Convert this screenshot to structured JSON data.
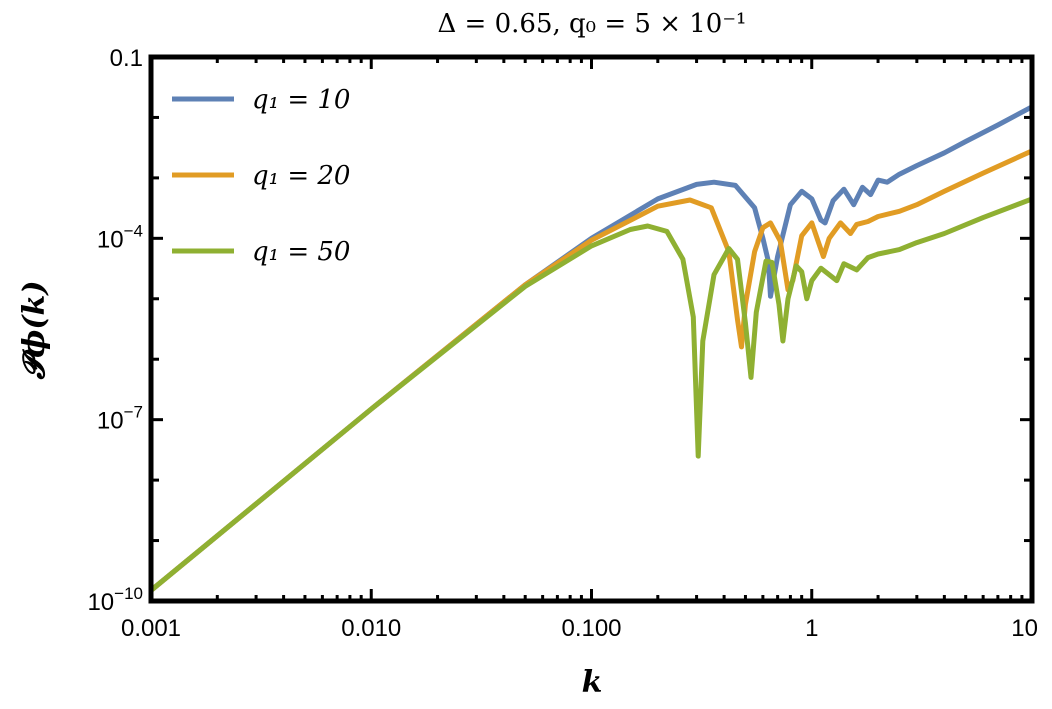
{
  "chart_data": {
    "type": "line",
    "title": "Δ = 0.65,  q₀ = 5 × 10⁻¹",
    "xlabel": "k",
    "ylabel": "𝓟ϕ(k)",
    "x_scale": "log",
    "y_scale": "log",
    "xlim": [
      0.001,
      10
    ],
    "ylim": [
      1e-10,
      0.1
    ],
    "x_ticks": [
      {
        "value": 0.001,
        "label": "0.001"
      },
      {
        "value": 0.01,
        "label": "0.010"
      },
      {
        "value": 0.1,
        "label": "0.100"
      },
      {
        "value": 1,
        "label": "1"
      },
      {
        "value": 10,
        "label": "10"
      }
    ],
    "y_ticks": [
      {
        "value": 1e-10,
        "label": "10",
        "exp": "−10"
      },
      {
        "value": 1e-07,
        "label": "10",
        "exp": "−7"
      },
      {
        "value": 0.0001,
        "label": "10",
        "exp": "−4"
      },
      {
        "value": 0.1,
        "label": "0.1",
        "exp": ""
      }
    ],
    "legend_position": "top-left",
    "series": [
      {
        "name": "q₁ = 10",
        "color": "#5e81b5",
        "points": [
          [
            0.001,
            1.5e-10
          ],
          [
            0.01,
            1.5e-07
          ],
          [
            0.05,
            1.7e-05
          ],
          [
            0.1,
            0.0001
          ],
          [
            0.2,
            0.00045
          ],
          [
            0.3,
            0.00078
          ],
          [
            0.36,
            0.00085
          ],
          [
            0.45,
            0.00075
          ],
          [
            0.55,
            0.00032
          ],
          [
            0.6,
            0.0001
          ],
          [
            0.635,
            4.2e-05
          ],
          [
            0.65,
            1.1e-05
          ],
          [
            0.7,
            5e-05
          ],
          [
            0.8,
            0.00036
          ],
          [
            0.9,
            0.0006
          ],
          [
            1.0,
            0.00045
          ],
          [
            1.1,
            0.0002
          ],
          [
            1.15,
            0.00018
          ],
          [
            1.25,
            0.00042
          ],
          [
            1.4,
            0.00065
          ],
          [
            1.55,
            0.00036
          ],
          [
            1.7,
            0.0007
          ],
          [
            1.85,
            0.00053
          ],
          [
            2.0,
            0.00092
          ],
          [
            2.2,
            0.00085
          ],
          [
            2.5,
            0.00115
          ],
          [
            3.0,
            0.0016
          ],
          [
            4.0,
            0.0026
          ],
          [
            5.0,
            0.004
          ],
          [
            7.0,
            0.0075
          ],
          [
            10.0,
            0.015
          ]
        ]
      },
      {
        "name": "q₁ = 20",
        "color": "#e19c24",
        "points": [
          [
            0.001,
            1.5e-10
          ],
          [
            0.01,
            1.5e-07
          ],
          [
            0.05,
            1.7e-05
          ],
          [
            0.1,
            9.3e-05
          ],
          [
            0.2,
            0.00034
          ],
          [
            0.28,
            0.00043
          ],
          [
            0.35,
            0.00032
          ],
          [
            0.42,
            6e-05
          ],
          [
            0.46,
            4.5e-06
          ],
          [
            0.48,
            1.6e-06
          ],
          [
            0.5,
            8e-06
          ],
          [
            0.55,
            6e-05
          ],
          [
            0.6,
            0.00015
          ],
          [
            0.65,
            0.00018
          ],
          [
            0.72,
            9e-05
          ],
          [
            0.78,
            1.4e-05
          ],
          [
            0.82,
            2e-05
          ],
          [
            0.9,
            0.00011
          ],
          [
            1.0,
            0.00018
          ],
          [
            1.08,
            8e-05
          ],
          [
            1.13,
            5e-05
          ],
          [
            1.2,
            0.0001
          ],
          [
            1.35,
            0.00018
          ],
          [
            1.5,
            0.00012
          ],
          [
            1.6,
            0.00017
          ],
          [
            1.8,
            0.00019
          ],
          [
            2.0,
            0.00023
          ],
          [
            2.5,
            0.00028
          ],
          [
            3.0,
            0.00036
          ],
          [
            4.0,
            0.0006
          ],
          [
            6.0,
            0.0012
          ],
          [
            10.0,
            0.0028
          ]
        ]
      },
      {
        "name": "q₁ = 50",
        "color": "#8fb032",
        "points": [
          [
            0.001,
            1.5e-10
          ],
          [
            0.01,
            1.5e-07
          ],
          [
            0.05,
            1.6e-05
          ],
          [
            0.1,
            7.5e-05
          ],
          [
            0.15,
            0.00014
          ],
          [
            0.18,
            0.00016
          ],
          [
            0.22,
            0.00013
          ],
          [
            0.26,
            4.5e-05
          ],
          [
            0.29,
            5e-06
          ],
          [
            0.305,
            2.5e-08
          ],
          [
            0.32,
            2e-06
          ],
          [
            0.36,
            2.5e-05
          ],
          [
            0.42,
            6.8e-05
          ],
          [
            0.46,
            4.5e-05
          ],
          [
            0.5,
            4e-06
          ],
          [
            0.53,
            5e-07
          ],
          [
            0.56,
            6e-06
          ],
          [
            0.62,
            4.2e-05
          ],
          [
            0.66,
            4e-05
          ],
          [
            0.71,
            8e-06
          ],
          [
            0.74,
            2e-06
          ],
          [
            0.78,
            1e-05
          ],
          [
            0.85,
            3.5e-05
          ],
          [
            0.9,
            2.8e-05
          ],
          [
            0.95,
            1e-05
          ],
          [
            1.0,
            2e-05
          ],
          [
            1.1,
            3.2e-05
          ],
          [
            1.3,
            2e-05
          ],
          [
            1.4,
            3.8e-05
          ],
          [
            1.6,
            3e-05
          ],
          [
            1.8,
            4.8e-05
          ],
          [
            2.0,
            5.5e-05
          ],
          [
            2.5,
            6.5e-05
          ],
          [
            3.0,
            8.5e-05
          ],
          [
            4.0,
            0.00012
          ],
          [
            6.0,
            0.00022
          ],
          [
            10.0,
            0.00045
          ]
        ]
      }
    ]
  }
}
